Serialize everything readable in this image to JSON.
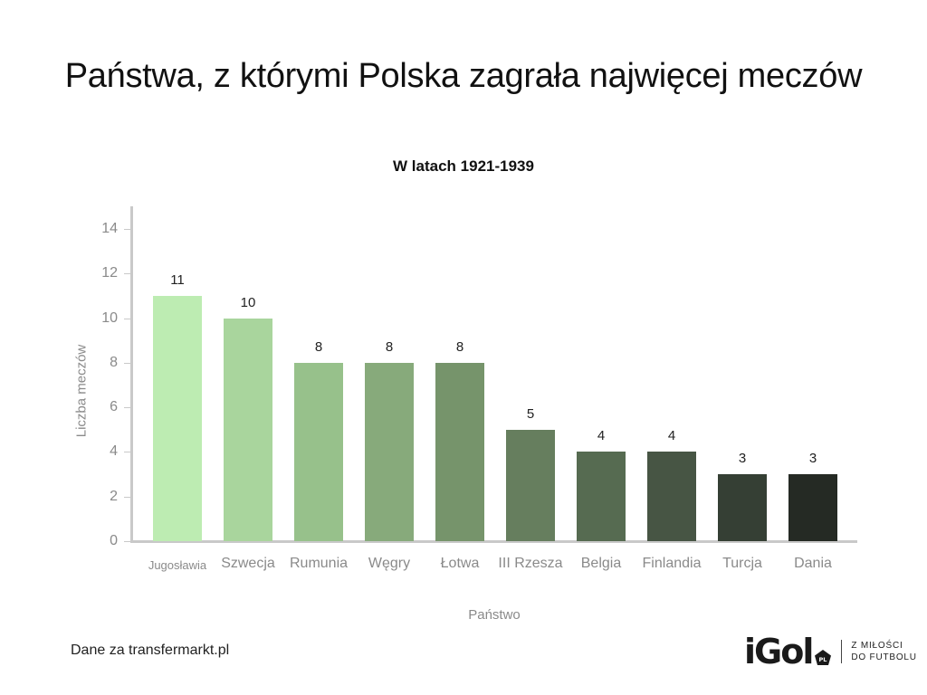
{
  "header": {
    "title": "Państwa, z którymi Polska zagrała najwięcej meczów",
    "subtitle": "W latach 1921-1939"
  },
  "chart_data": {
    "type": "bar",
    "title": "Państwa, z którymi Polska zagrała najwięcej meczów",
    "subtitle": "W latach 1921-1939",
    "xlabel": "Państwo",
    "ylabel": "Liczba meczów",
    "ylim": [
      0,
      15
    ],
    "yticks": [
      0,
      2,
      4,
      6,
      8,
      10,
      12,
      14
    ],
    "grid": false,
    "legend": null,
    "categories": [
      "Jugosławia",
      "Szwecja",
      "Rumunia",
      "Węgry",
      "Łotwa",
      "III Rzesza",
      "Belgia",
      "Finlandia",
      "Turcja",
      "Dania"
    ],
    "values": [
      11,
      10,
      8,
      8,
      8,
      5,
      4,
      4,
      3,
      3
    ],
    "colors": [
      "#bdecb2",
      "#a9d59d",
      "#97c18b",
      "#87aa7b",
      "#76946b",
      "#667e5e",
      "#566b51",
      "#475544",
      "#353f34",
      "#252a24"
    ],
    "data_labels": [
      "11",
      "10",
      "8",
      "8",
      "8",
      "5",
      "4",
      "4",
      "3",
      "3"
    ]
  },
  "footer": {
    "source": "Dane za transfermarkt.pl",
    "logo": {
      "wordmark": "iGol",
      "badge": "PL",
      "tagline_line1": "Z MIŁOŚCI",
      "tagline_line2": "DO FUTBOLU"
    }
  }
}
